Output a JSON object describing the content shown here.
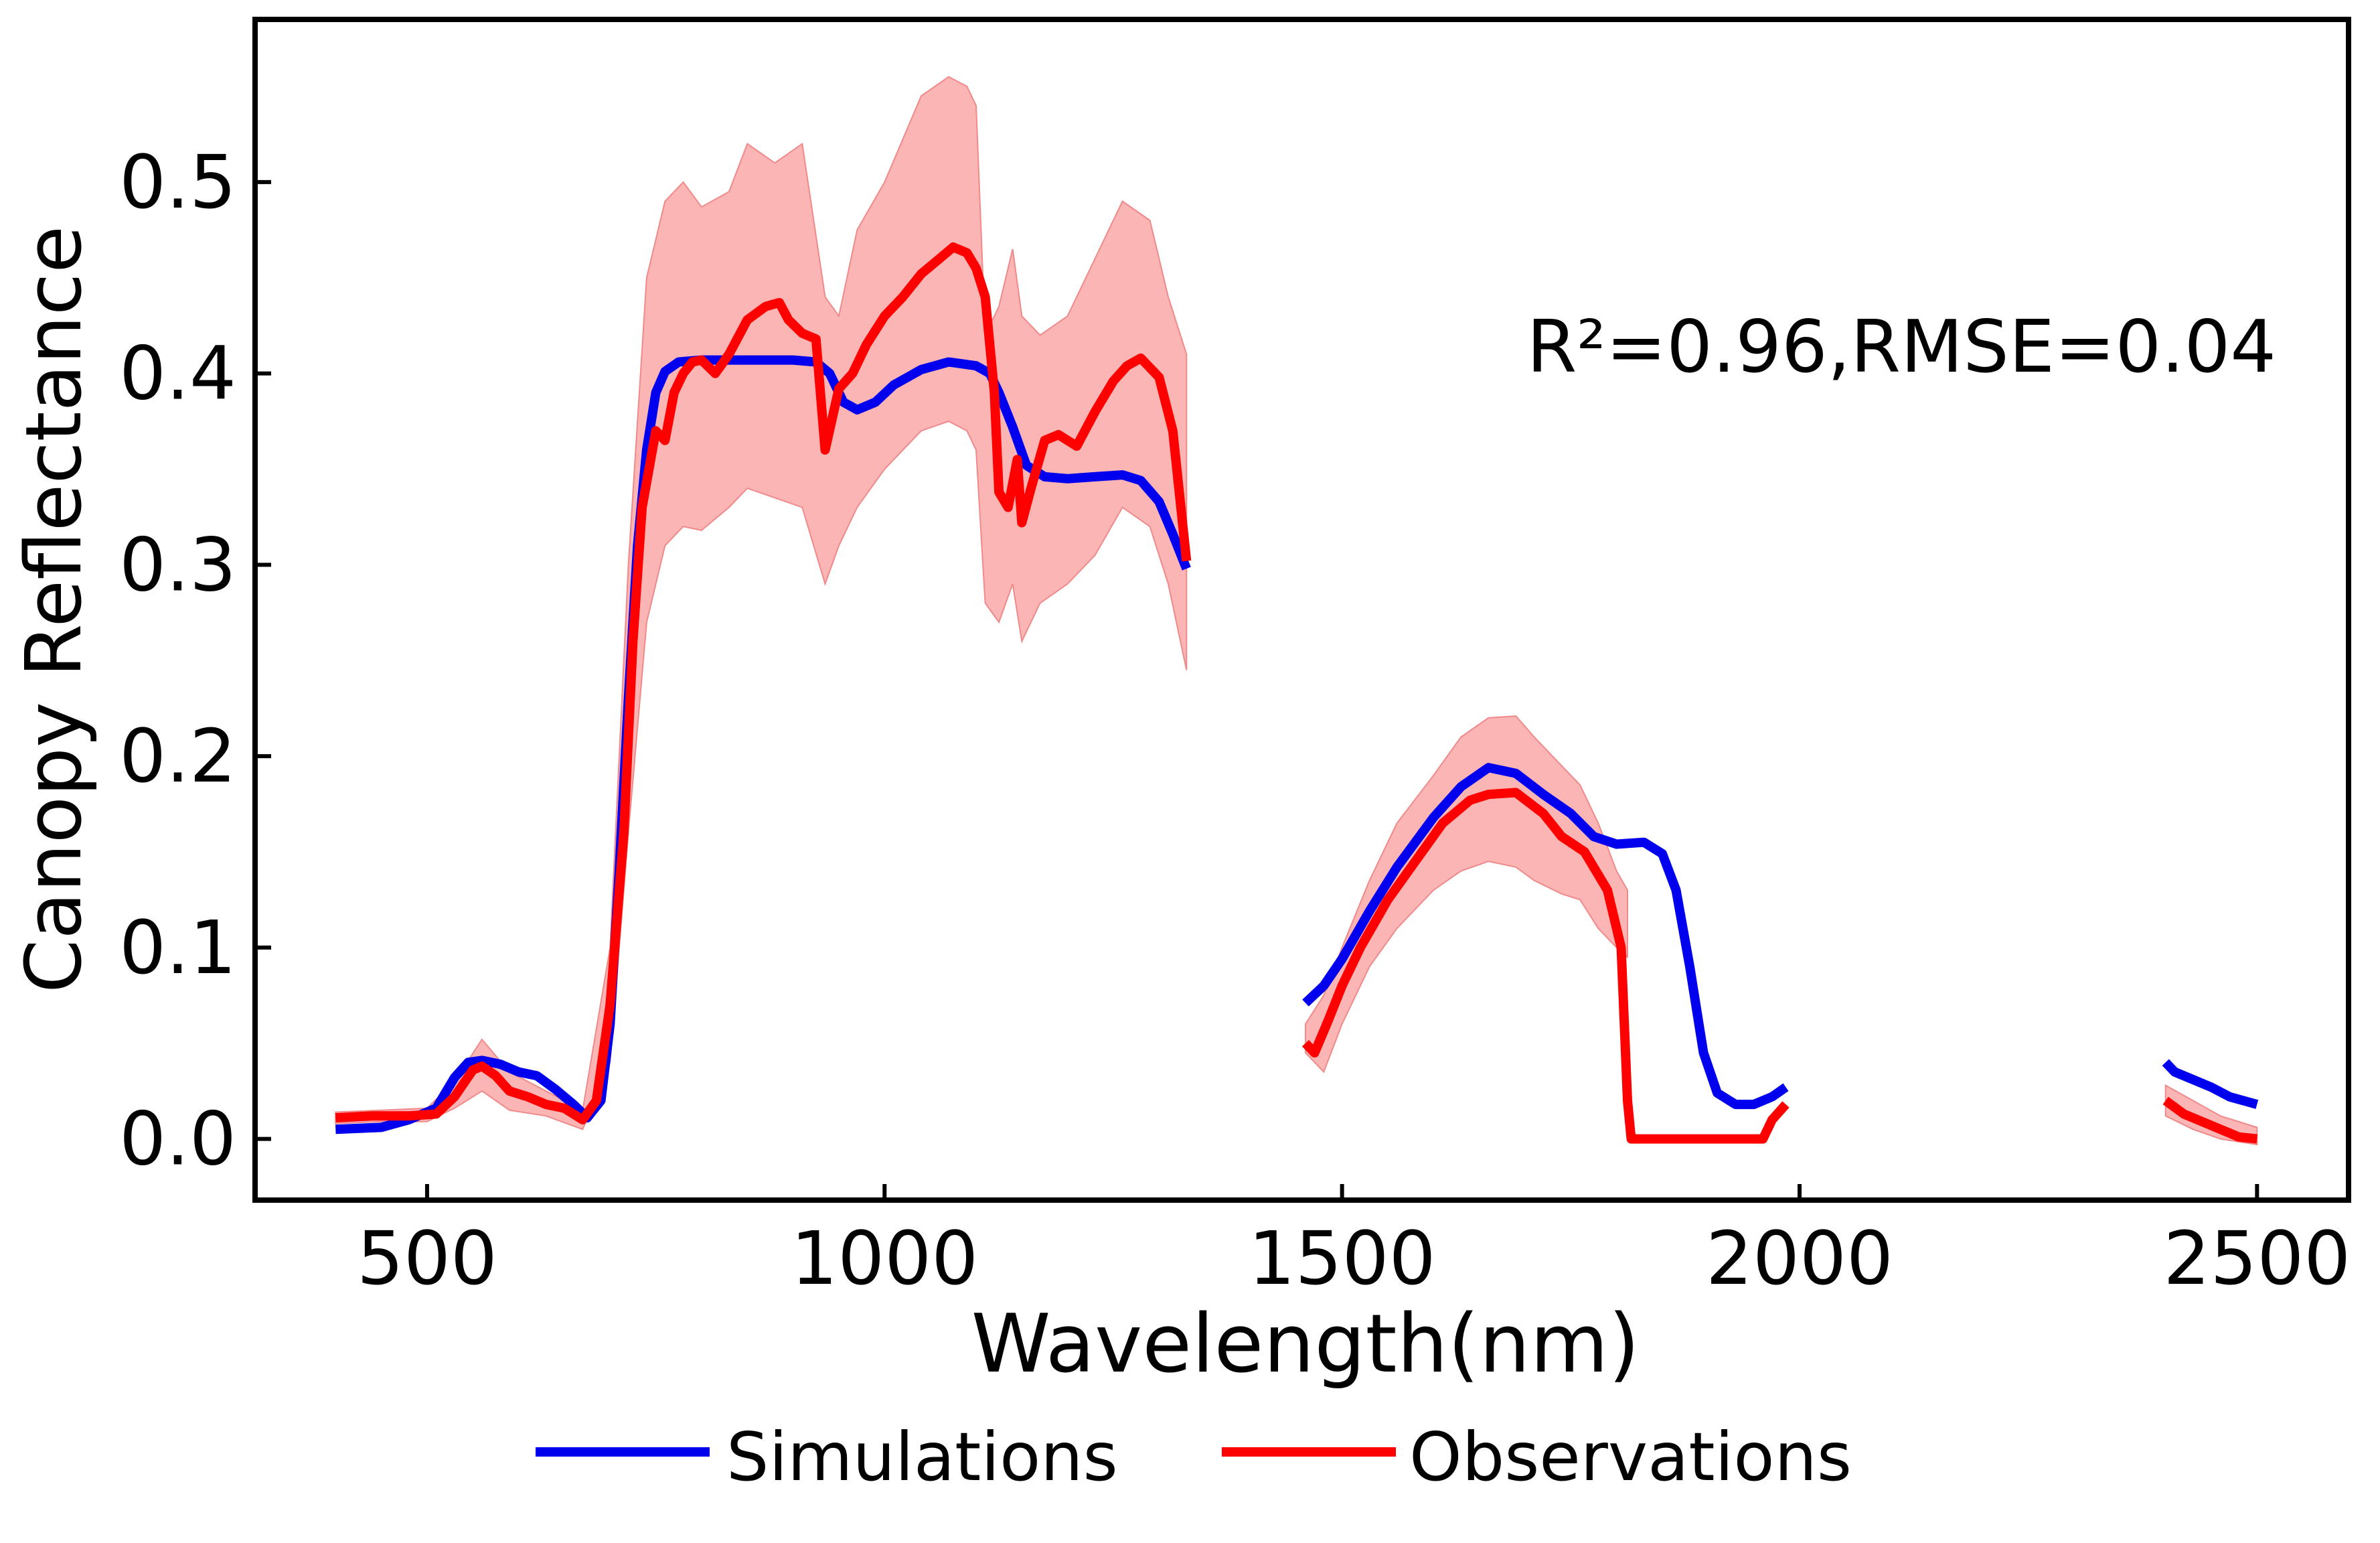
{
  "chart_data": {
    "type": "line",
    "xlabel": "Wavelength(nm)",
    "ylabel": "Canopy Reflectance",
    "xlim": [
      312,
      2600
    ],
    "ylim": [
      -0.032,
      0.585
    ],
    "xticks": [
      500,
      1000,
      1500,
      2000,
      2500
    ],
    "xtick_labels": [
      "500",
      "1000",
      "1500",
      "2000",
      "2500"
    ],
    "yticks": [
      0.0,
      0.1,
      0.2,
      0.3,
      0.4,
      0.5
    ],
    "ytick_labels": [
      "0.0",
      "0.1",
      "0.2",
      "0.3",
      "0.4",
      "0.5"
    ],
    "grid": false,
    "legend_position": "bottom-center",
    "annotation": "R²=0.96,RMSE=0.04",
    "series": [
      {
        "name": "Simulations",
        "color": "#0000ee",
        "segments": [
          [
            [
              400,
              0.005
            ],
            [
              450,
              0.006
            ],
            [
              480,
              0.01
            ],
            [
              510,
              0.016
            ],
            [
              530,
              0.032
            ],
            [
              545,
              0.04
            ],
            [
              560,
              0.041
            ],
            [
              580,
              0.039
            ],
            [
              600,
              0.035
            ],
            [
              620,
              0.033
            ],
            [
              640,
              0.026
            ],
            [
              660,
              0.018
            ],
            [
              675,
              0.011
            ],
            [
              690,
              0.02
            ],
            [
              700,
              0.06
            ],
            [
              710,
              0.14
            ],
            [
              720,
              0.23
            ],
            [
              730,
              0.31
            ],
            [
              740,
              0.36
            ],
            [
              750,
              0.39
            ],
            [
              760,
              0.401
            ],
            [
              775,
              0.406
            ],
            [
              800,
              0.407
            ],
            [
              850,
              0.407
            ],
            [
              900,
              0.407
            ],
            [
              925,
              0.406
            ],
            [
              940,
              0.4
            ],
            [
              955,
              0.385
            ],
            [
              970,
              0.381
            ],
            [
              990,
              0.385
            ],
            [
              1010,
              0.394
            ],
            [
              1040,
              0.402
            ],
            [
              1070,
              0.406
            ],
            [
              1100,
              0.404
            ],
            [
              1115,
              0.4
            ],
            [
              1125,
              0.39
            ],
            [
              1140,
              0.372
            ],
            [
              1155,
              0.352
            ],
            [
              1175,
              0.346
            ],
            [
              1200,
              0.345
            ],
            [
              1230,
              0.346
            ],
            [
              1260,
              0.347
            ],
            [
              1280,
              0.344
            ],
            [
              1300,
              0.333
            ],
            [
              1315,
              0.316
            ],
            [
              1330,
              0.298
            ]
          ],
          [
            [
              1460,
              0.071
            ],
            [
              1480,
              0.08
            ],
            [
              1500,
              0.094
            ],
            [
              1530,
              0.119
            ],
            [
              1560,
              0.142
            ],
            [
              1600,
              0.168
            ],
            [
              1630,
              0.184
            ],
            [
              1660,
              0.194
            ],
            [
              1690,
              0.191
            ],
            [
              1720,
              0.18
            ],
            [
              1750,
              0.17
            ],
            [
              1775,
              0.158
            ],
            [
              1800,
              0.154
            ],
            [
              1830,
              0.155
            ],
            [
              1850,
              0.149
            ],
            [
              1865,
              0.13
            ],
            [
              1880,
              0.09
            ],
            [
              1895,
              0.045
            ],
            [
              1910,
              0.024
            ],
            [
              1930,
              0.018
            ],
            [
              1950,
              0.018
            ],
            [
              1970,
              0.022
            ],
            [
              1985,
              0.027
            ]
          ],
          [
            [
              2400,
              0.04
            ],
            [
              2410,
              0.035
            ],
            [
              2430,
              0.031
            ],
            [
              2450,
              0.027
            ],
            [
              2470,
              0.022
            ],
            [
              2500,
              0.018
            ]
          ]
        ]
      },
      {
        "name": "Observations",
        "color": "#ff0000",
        "segments": [
          [
            [
              400,
              0.011
            ],
            [
              440,
              0.012
            ],
            [
              480,
              0.012
            ],
            [
              510,
              0.013
            ],
            [
              530,
              0.022
            ],
            [
              550,
              0.036
            ],
            [
              560,
              0.038
            ],
            [
              575,
              0.033
            ],
            [
              590,
              0.025
            ],
            [
              610,
              0.022
            ],
            [
              630,
              0.018
            ],
            [
              650,
              0.016
            ],
            [
              670,
              0.01
            ],
            [
              685,
              0.02
            ],
            [
              700,
              0.07
            ],
            [
              715,
              0.16
            ],
            [
              725,
              0.26
            ],
            [
              735,
              0.33
            ],
            [
              750,
              0.37
            ],
            [
              760,
              0.365
            ],
            [
              770,
              0.39
            ],
            [
              780,
              0.4
            ],
            [
              790,
              0.406
            ],
            [
              800,
              0.407
            ],
            [
              815,
              0.4
            ],
            [
              830,
              0.41
            ],
            [
              850,
              0.428
            ],
            [
              870,
              0.435
            ],
            [
              885,
              0.437
            ],
            [
              895,
              0.428
            ],
            [
              910,
              0.421
            ],
            [
              925,
              0.418
            ],
            [
              935,
              0.36
            ],
            [
              950,
              0.392
            ],
            [
              965,
              0.4
            ],
            [
              980,
              0.415
            ],
            [
              1000,
              0.43
            ],
            [
              1020,
              0.44
            ],
            [
              1040,
              0.452
            ],
            [
              1060,
              0.46
            ],
            [
              1075,
              0.466
            ],
            [
              1090,
              0.463
            ],
            [
              1100,
              0.455
            ],
            [
              1110,
              0.44
            ],
            [
              1120,
              0.39
            ],
            [
              1125,
              0.338
            ],
            [
              1135,
              0.33
            ],
            [
              1145,
              0.355
            ],
            [
              1150,
              0.322
            ],
            [
              1160,
              0.34
            ],
            [
              1175,
              0.365
            ],
            [
              1190,
              0.368
            ],
            [
              1210,
              0.362
            ],
            [
              1230,
              0.38
            ],
            [
              1250,
              0.396
            ],
            [
              1265,
              0.404
            ],
            [
              1280,
              0.408
            ],
            [
              1300,
              0.398
            ],
            [
              1315,
              0.37
            ],
            [
              1330,
              0.302
            ]
          ],
          [
            [
              1460,
              0.05
            ],
            [
              1470,
              0.045
            ],
            [
              1485,
              0.062
            ],
            [
              1500,
              0.08
            ],
            [
              1520,
              0.1
            ],
            [
              1550,
              0.125
            ],
            [
              1580,
              0.145
            ],
            [
              1610,
              0.165
            ],
            [
              1640,
              0.177
            ],
            [
              1660,
              0.18
            ],
            [
              1690,
              0.181
            ],
            [
              1720,
              0.17
            ],
            [
              1740,
              0.158
            ],
            [
              1765,
              0.15
            ],
            [
              1790,
              0.13
            ],
            [
              1805,
              0.1
            ],
            [
              1812,
              0.02
            ],
            [
              1816,
              0.0
            ],
            [
              1840,
              0.0
            ],
            [
              1900,
              0.0
            ],
            [
              1960,
              0.0
            ],
            [
              1970,
              0.01
            ],
            [
              1985,
              0.018
            ]
          ],
          [
            [
              2400,
              0.02
            ],
            [
              2420,
              0.013
            ],
            [
              2440,
              0.009
            ],
            [
              2455,
              0.006
            ],
            [
              2465,
              0.004
            ],
            [
              2480,
              0.001
            ],
            [
              2500,
              0.0
            ]
          ]
        ]
      }
    ],
    "shaded_range": {
      "color": "#fba8a8",
      "segments": [
        {
          "x": [
            400,
            450,
            500,
            530,
            560,
            590,
            630,
            670,
            700,
            720,
            740,
            760,
            780,
            800,
            830,
            850,
            880,
            910,
            935,
            950,
            970,
            1000,
            1040,
            1070,
            1090,
            1100,
            1110,
            1125,
            1140,
            1150,
            1170,
            1200,
            1230,
            1260,
            1290,
            1310,
            1330
          ],
          "upper": [
            0.014,
            0.015,
            0.016,
            0.03,
            0.052,
            0.035,
            0.025,
            0.015,
            0.1,
            0.3,
            0.45,
            0.49,
            0.5,
            0.487,
            0.495,
            0.52,
            0.51,
            0.52,
            0.44,
            0.43,
            0.475,
            0.5,
            0.545,
            0.555,
            0.55,
            0.54,
            0.42,
            0.435,
            0.465,
            0.43,
            0.42,
            0.43,
            0.46,
            0.49,
            0.48,
            0.44,
            0.41
          ],
          "lower": [
            0.008,
            0.009,
            0.009,
            0.016,
            0.025,
            0.015,
            0.012,
            0.005,
            0.04,
            0.16,
            0.27,
            0.31,
            0.32,
            0.318,
            0.33,
            0.34,
            0.335,
            0.33,
            0.29,
            0.31,
            0.33,
            0.35,
            0.37,
            0.375,
            0.37,
            0.36,
            0.28,
            0.27,
            0.29,
            0.26,
            0.28,
            0.29,
            0.305,
            0.33,
            0.32,
            0.29,
            0.245
          ]
        },
        {
          "x": [
            1460,
            1480,
            1500,
            1530,
            1560,
            1600,
            1630,
            1660,
            1690,
            1710,
            1740,
            1760,
            1780,
            1800,
            1812
          ],
          "upper": [
            0.06,
            0.075,
            0.1,
            0.135,
            0.165,
            0.19,
            0.21,
            0.22,
            0.221,
            0.21,
            0.195,
            0.185,
            0.165,
            0.14,
            0.13
          ],
          "lower": [
            0.045,
            0.035,
            0.06,
            0.09,
            0.11,
            0.13,
            0.14,
            0.145,
            0.142,
            0.135,
            0.128,
            0.125,
            0.11,
            0.1,
            0.095
          ]
        },
        {
          "x": [
            2400,
            2430,
            2460,
            2500
          ],
          "upper": [
            0.028,
            0.02,
            0.012,
            0.006
          ],
          "lower": [
            0.012,
            0.005,
            0.0,
            -0.003
          ]
        }
      ]
    }
  }
}
